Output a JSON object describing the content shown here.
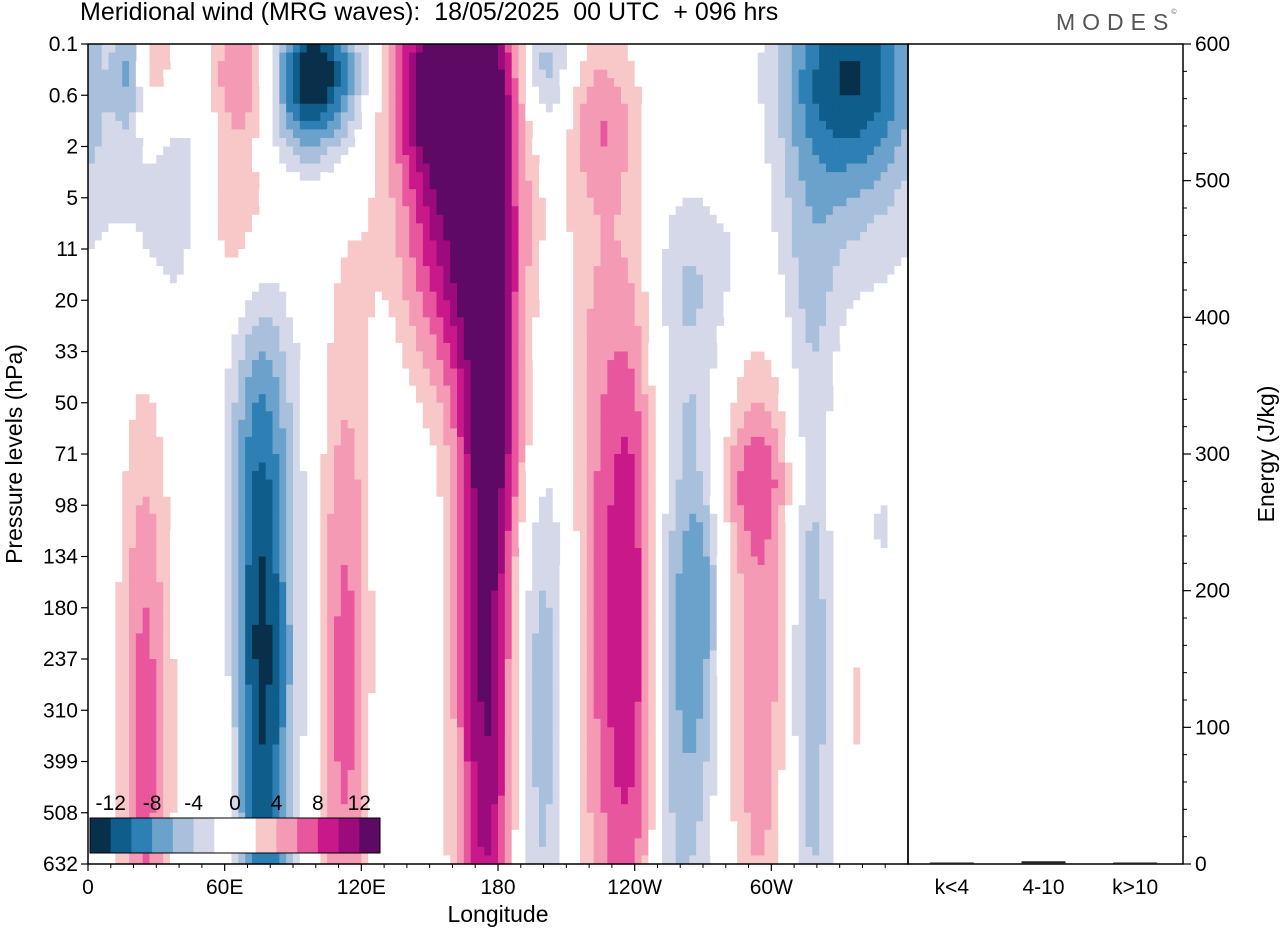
{
  "header": {
    "title": "Meridional wind (MRG waves):  18/05/2025  00 UTC  + 096 hrs",
    "logo": "MODES",
    "logo_mark": "©"
  },
  "colors": {
    "palette": [
      "#08304b",
      "#0f5d8a",
      "#2d7fb4",
      "#6ba2cb",
      "#a8c0dc",
      "#d4d8e8",
      "#ffffff",
      "#ffffff",
      "#f8c8c8",
      "#f49ab5",
      "#e8579e",
      "#c9188a",
      "#9b0b7c",
      "#5e0a64"
    ],
    "axis": "#000000"
  },
  "chart_data": [
    {
      "type": "heatmap",
      "title": "Meridional wind (MRG waves):  18/05/2025  00 UTC  + 096 hrs",
      "xlabel": "Longitude",
      "ylabel": "Pressure levels (hPa)",
      "x_ticks": [
        "0",
        "60E",
        "120E",
        "180",
        "120W",
        "60W"
      ],
      "y_ticks": [
        "0.1",
        "0.6",
        "2",
        "5",
        "11",
        "20",
        "33",
        "50",
        "71",
        "98",
        "134",
        "180",
        "237",
        "310",
        "399",
        "508",
        "632"
      ],
      "colorbar": {
        "labels": [
          "-12",
          "-8",
          "-4",
          "0",
          "4",
          "8",
          "12"
        ],
        "levels": [
          -12,
          -10,
          -8,
          -6,
          -4,
          -2,
          0,
          2,
          4,
          6,
          8,
          10,
          12,
          14
        ]
      },
      "features": [
        {
          "lon": 18,
          "lev": 0.4,
          "w": 5,
          "h": 0.9,
          "v": -8
        },
        {
          "lon": 25,
          "lev": 0.2,
          "w": 10,
          "h": 1.2,
          "v": 6
        },
        {
          "lon": 40,
          "lev": 3.0,
          "w": 18,
          "h": 1.8,
          "v": -4
        },
        {
          "lon": 68,
          "lev": 3.2,
          "w": 14,
          "h": 1.6,
          "v": 7
        },
        {
          "lon": 70,
          "lev": 0.6,
          "w": 12,
          "h": 1.0,
          "v": 9
        },
        {
          "lon": 100,
          "lev": 0.5,
          "w": 14,
          "h": 1.0,
          "v": -12
        },
        {
          "lon": 85,
          "lev": 1.2,
          "w": 22,
          "h": 1.0,
          "v": -4
        },
        {
          "lon": 160,
          "lev": 0.7,
          "w": 18,
          "h": 1.2,
          "v": 14
        },
        {
          "lon": 160,
          "lev": 3.0,
          "w": 18,
          "h": 2.2,
          "v": 8
        },
        {
          "lon": 175,
          "lev": 4.5,
          "w": 25,
          "h": 2.2,
          "v": 4
        },
        {
          "lon": 200,
          "lev": 0.5,
          "w": 8,
          "h": 0.9,
          "v": -6
        },
        {
          "lon": 225,
          "lev": 1.5,
          "w": 10,
          "h": 1.0,
          "v": 4
        },
        {
          "lon": 335,
          "lev": 0.6,
          "w": 22,
          "h": 1.6,
          "v": -12
        },
        {
          "lon": 320,
          "lev": 4.0,
          "w": 28,
          "h": 1.6,
          "v": -3
        },
        {
          "lon": 270,
          "lev": 4.5,
          "w": 18,
          "h": 1.0,
          "v": -2
        },
        {
          "lon": 185,
          "lev": 8.0,
          "w": 12,
          "h": 1.4,
          "v": 3
        },
        {
          "lon": 290,
          "lev": 8.5,
          "w": 20,
          "h": 0.8,
          "v": 3
        },
        {
          "lon": 25,
          "lev": 13.5,
          "w": 8,
          "h": 4.5,
          "v": 7
        },
        {
          "lon": 60,
          "lev": 14.0,
          "w": 8,
          "h": 3.0,
          "v": 3
        },
        {
          "lon": 76,
          "lev": 12.0,
          "w": 10,
          "h": 5.5,
          "v": -13
        },
        {
          "lon": 98,
          "lev": 11.5,
          "w": 7,
          "h": 6.0,
          "v": -2
        },
        {
          "lon": 112,
          "lev": 12.5,
          "w": 11,
          "h": 5.0,
          "v": 7
        },
        {
          "lon": 132,
          "lev": 13.5,
          "w": 7,
          "h": 5.0,
          "v": -3
        },
        {
          "lon": 176,
          "lev": 11.5,
          "w": 10,
          "h": 6.5,
          "v": 14
        },
        {
          "lon": 196,
          "lev": 12.5,
          "w": 12,
          "h": 5.5,
          "v": -6
        },
        {
          "lon": 225,
          "lev": 11.0,
          "w": 10,
          "h": 6.0,
          "v": 6
        },
        {
          "lon": 240,
          "lev": 11.5,
          "w": 8,
          "h": 5.0,
          "v": 8
        },
        {
          "lon": 260,
          "lev": 12.0,
          "w": 10,
          "h": 5.0,
          "v": -6
        },
        {
          "lon": 270,
          "lev": 10.5,
          "w": 6,
          "h": 2.5,
          "v": -4
        },
        {
          "lon": 295,
          "lev": 11.5,
          "w": 10,
          "h": 5.0,
          "v": 6
        },
        {
          "lon": 318,
          "lev": 12.0,
          "w": 8,
          "h": 5.0,
          "v": -6
        },
        {
          "lon": 335,
          "lev": 11.5,
          "w": 8,
          "h": 3.5,
          "v": 3
        },
        {
          "lon": 345,
          "lev": 9.5,
          "w": 8,
          "h": 1.6,
          "v": -3
        }
      ]
    },
    {
      "type": "bar",
      "categories": [
        "k<4",
        "4-10",
        "k>10"
      ],
      "values": [
        0,
        2,
        0
      ],
      "ylabel": "Energy (J/kg)",
      "ylim": [
        0,
        600
      ],
      "y_ticks": [
        "0",
        "100",
        "200",
        "300",
        "400",
        "500",
        "600"
      ]
    }
  ]
}
